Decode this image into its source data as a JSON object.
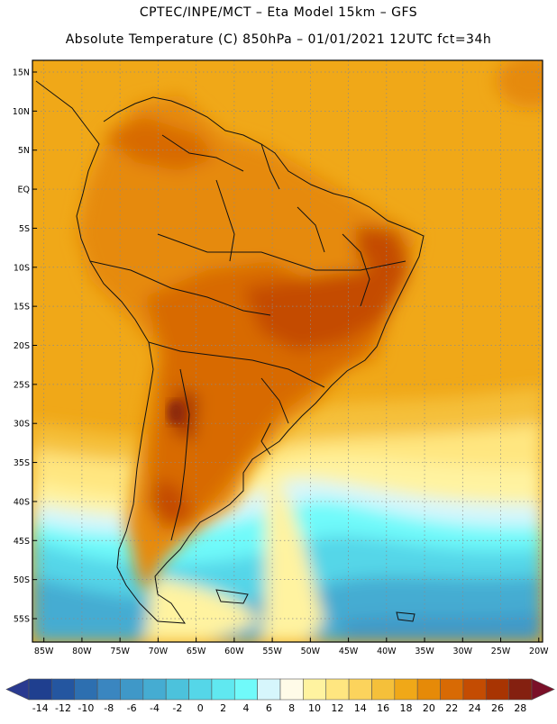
{
  "title": {
    "line1": "CPTEC/INPE/MCT –   Eta Model 15km – GFS",
    "line2": "Absolute Temperature (C) 850hPa – 01/01/2021 12UTC fct=34h"
  },
  "map": {
    "lat_labels": [
      "15N",
      "10N",
      "5N",
      "EQ",
      "5S",
      "10S",
      "15S",
      "20S",
      "25S",
      "30S",
      "35S",
      "40S",
      "45S",
      "50S",
      "55S"
    ],
    "lat_values": [
      15,
      10,
      5,
      0,
      -5,
      -10,
      -15,
      -20,
      -25,
      -30,
      -35,
      -40,
      -45,
      -50,
      -55
    ],
    "lon_labels": [
      "85W",
      "80W",
      "75W",
      "70W",
      "65W",
      "60W",
      "55W",
      "50W",
      "45W",
      "40W",
      "35W",
      "30W",
      "25W",
      "20W"
    ],
    "lon_values": [
      -85,
      -80,
      -75,
      -70,
      -65,
      -60,
      -55,
      -50,
      -45,
      -40,
      -35,
      -30,
      -25,
      -20
    ],
    "lat_range": [
      -58,
      16.5
    ],
    "lon_range": [
      -86.5,
      -19.5
    ]
  },
  "colorbar": {
    "labels": [
      "-14",
      "-12",
      "-10",
      "-8",
      "-6",
      "-4",
      "-2",
      "0",
      "2",
      "4",
      "6",
      "8",
      "10",
      "12",
      "14",
      "16",
      "18",
      "20",
      "22",
      "24",
      "26",
      "28"
    ],
    "colors": [
      "#1f3f8f",
      "#2456a0",
      "#2d6fb0",
      "#3a86c0",
      "#3f98c8",
      "#45acd2",
      "#4cc2dc",
      "#55d6e8",
      "#60e8f0",
      "#70fafa",
      "#d6f6fc",
      "#fffbe8",
      "#fff3a0",
      "#ffe680",
      "#fcd35c",
      "#f5c03a",
      "#f0a818",
      "#e68a08",
      "#d86a04",
      "#c44c02",
      "#a83402",
      "#842010"
    ],
    "under_color": "#2a3a90",
    "over_color": "#7a1028"
  }
}
